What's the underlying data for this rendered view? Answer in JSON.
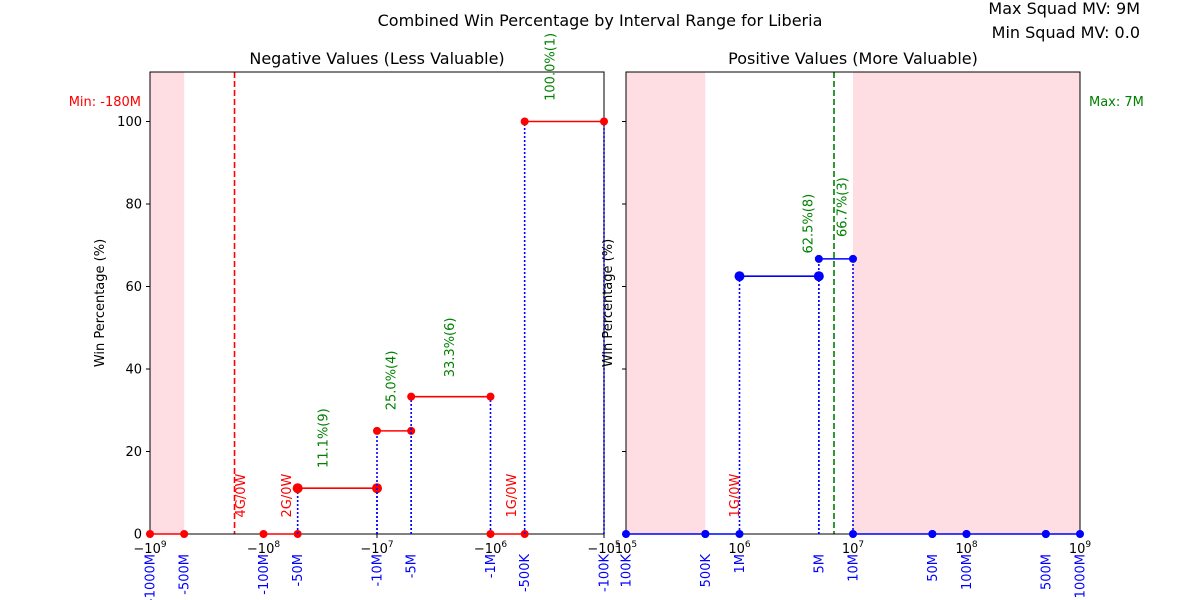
{
  "figure": {
    "title": "Combined Win Percentage by Interval Range for Liberia",
    "max_mv_label": "Max Squad MV: 9M",
    "min_mv_label": "Min Squad MV: 0.0"
  },
  "colors": {
    "negative": "#ff0000",
    "positive": "#0000ff",
    "connector": "#0000ff",
    "annotation": "#008000",
    "shade": "#ffb6c1",
    "shade_opacity": 0.45,
    "min_line": "#ff0000",
    "max_line": "#008000"
  },
  "chart_data": [
    {
      "type": "line",
      "panel": "negative",
      "title": "Negative Values (Less Valuable)",
      "ylabel": "Win Percentage (%)",
      "xscale": "symlog-negative",
      "ylim": [
        0,
        112
      ],
      "yticks": [
        0,
        20,
        40,
        60,
        80,
        100
      ],
      "exponent_ticks": [
        {
          "x": -1000000000,
          "base": "−10",
          "exp": "9"
        },
        {
          "x": -100000000,
          "base": "−10",
          "exp": "8"
        },
        {
          "x": -10000000,
          "base": "−10",
          "exp": "7"
        },
        {
          "x": -1000000,
          "base": "−10",
          "exp": "6"
        },
        {
          "x": -100000,
          "base": "−10",
          "exp": "5"
        }
      ],
      "interval_labels": [
        {
          "x": -1000000000,
          "label": "-1000M"
        },
        {
          "x": -500000000,
          "label": "-500M"
        },
        {
          "x": -100000000,
          "label": "-100M"
        },
        {
          "x": -50000000,
          "label": "-50M"
        },
        {
          "x": -10000000,
          "label": "-10M"
        },
        {
          "x": -5000000,
          "label": "-5M"
        },
        {
          "x": -1000000,
          "label": "-1M"
        },
        {
          "x": -500000,
          "label": "-500K"
        },
        {
          "x": -100000,
          "label": "-100K"
        }
      ],
      "shaded": [
        [
          -1000000000,
          -500000000
        ]
      ],
      "ref_line": {
        "x": -180000000,
        "label": "Min: -180M"
      },
      "segments": [
        {
          "x1": -1000000000,
          "x2": -500000000,
          "y": 0,
          "marker_size": "small",
          "connector": false
        },
        {
          "x1": -100000000,
          "x2": -50000000,
          "y": 0,
          "marker_size": "small",
          "connector": false
        },
        {
          "x1": -50000000,
          "x2": -10000000,
          "y": 11.1,
          "marker_size": "large",
          "connector": true
        },
        {
          "x1": -10000000,
          "x2": -5000000,
          "y": 25.0,
          "marker_size": "small",
          "connector": true
        },
        {
          "x1": -5000000,
          "x2": -1000000,
          "y": 33.3,
          "marker_size": "small",
          "connector": true
        },
        {
          "x1": -1000000,
          "x2": -500000,
          "y": 0,
          "marker_size": "small",
          "connector": false
        },
        {
          "x1": -500000,
          "x2": -100000,
          "y": 100,
          "marker_size": "small",
          "connector": true
        }
      ],
      "annotations": [
        {
          "x": -30000000,
          "y": 16,
          "text": "11.1%(9)",
          "color": "green"
        },
        {
          "x": -7500000,
          "y": 30,
          "text": "25.0%(4)",
          "color": "green"
        },
        {
          "x": -2300000,
          "y": 38,
          "text": "33.3%(6)",
          "color": "green"
        },
        {
          "x": -300000,
          "y": 105,
          "text": "100.0%(1)",
          "color": "green"
        },
        {
          "x": -160000000,
          "y": 4,
          "text": "4G/0W",
          "color": "red"
        },
        {
          "x": -63000000,
          "y": 4,
          "text": "2G/0W",
          "color": "red"
        },
        {
          "x": -650000,
          "y": 4,
          "text": "1G/0W",
          "color": "red"
        }
      ]
    },
    {
      "type": "line",
      "panel": "positive",
      "title": "Positive Values (More Valuable)",
      "ylabel": "Win Percentage (%)",
      "xscale": "log",
      "ylim": [
        0,
        112
      ],
      "yticks": [
        0,
        20,
        40,
        60,
        80,
        100
      ],
      "exponent_ticks": [
        {
          "x": 100000,
          "base": "10",
          "exp": "5"
        },
        {
          "x": 1000000,
          "base": "10",
          "exp": "6"
        },
        {
          "x": 10000000,
          "base": "10",
          "exp": "7"
        },
        {
          "x": 100000000,
          "base": "10",
          "exp": "8"
        },
        {
          "x": 1000000000,
          "base": "10",
          "exp": "9"
        }
      ],
      "interval_labels": [
        {
          "x": 100000,
          "label": "100K"
        },
        {
          "x": 500000,
          "label": "500K"
        },
        {
          "x": 1000000,
          "label": "1M"
        },
        {
          "x": 5000000,
          "label": "5M"
        },
        {
          "x": 10000000,
          "label": "10M"
        },
        {
          "x": 50000000,
          "label": "50M"
        },
        {
          "x": 100000000,
          "label": "100M"
        },
        {
          "x": 500000000,
          "label": "500M"
        },
        {
          "x": 1000000000,
          "label": "1000M"
        }
      ],
      "shaded": [
        [
          100000,
          500000
        ],
        [
          10000000,
          1000000000
        ]
      ],
      "ref_line": {
        "x": 6800000,
        "label": "Max: 7M"
      },
      "segments": [
        {
          "x1": 100000,
          "x2": 500000,
          "y": 0,
          "marker_size": "small",
          "connector": false
        },
        {
          "x1": 500000,
          "x2": 1000000,
          "y": 0,
          "marker_size": "small",
          "connector": false
        },
        {
          "x1": 1000000,
          "x2": 5000000,
          "y": 62.5,
          "marker_size": "large",
          "connector": true
        },
        {
          "x1": 5000000,
          "x2": 10000000,
          "y": 66.7,
          "marker_size": "small",
          "connector": true
        },
        {
          "x1": 10000000,
          "x2": 50000000,
          "y": 0,
          "marker_size": "small",
          "connector": false
        },
        {
          "x1": 50000000,
          "x2": 100000000,
          "y": 0,
          "marker_size": "small",
          "connector": false
        },
        {
          "x1": 100000000,
          "x2": 500000000,
          "y": 0,
          "marker_size": "small",
          "connector": false
        },
        {
          "x1": 500000000,
          "x2": 1000000000,
          "y": 0,
          "marker_size": "small",
          "connector": false
        }
      ],
      "annotations": [
        {
          "x": 4000000,
          "y": 68,
          "text": "62.5%(8)",
          "color": "green"
        },
        {
          "x": 8000000,
          "y": 72,
          "text": "66.7%(3)",
          "color": "green"
        },
        {
          "x": 900000,
          "y": 4,
          "text": "1G/0W",
          "color": "red"
        }
      ]
    }
  ]
}
